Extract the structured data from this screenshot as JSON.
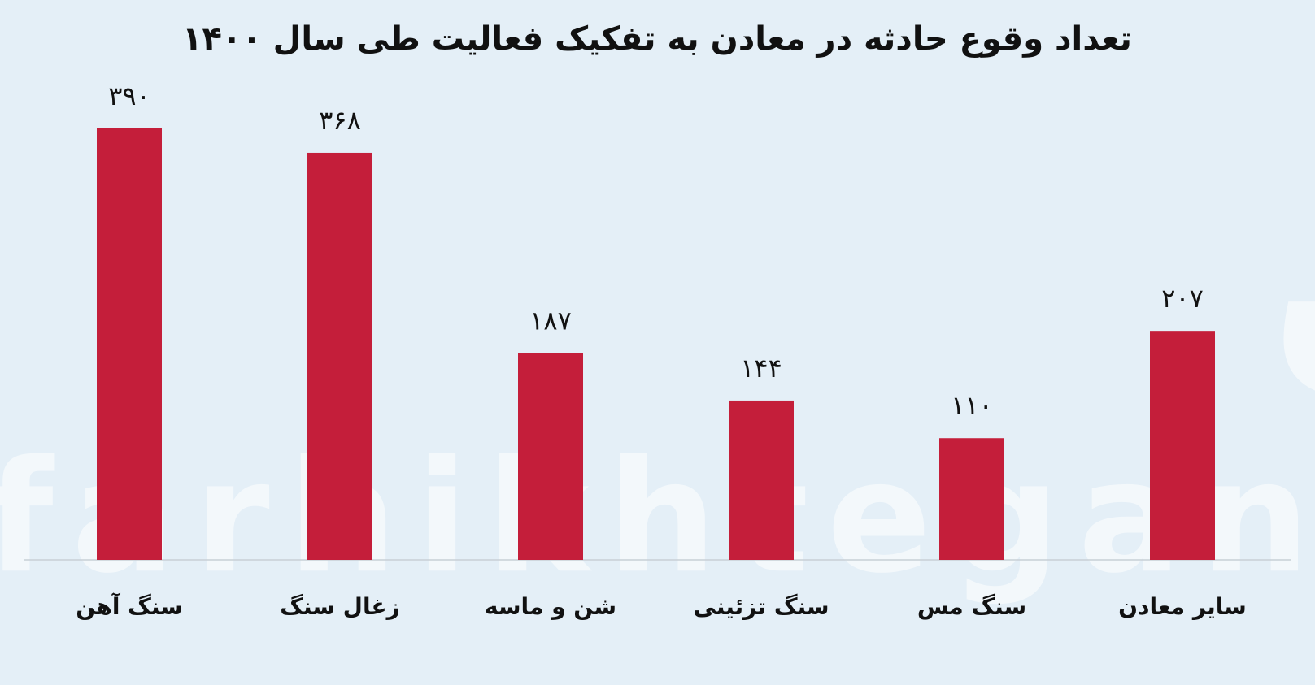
{
  "chart_data": {
    "type": "bar",
    "title": "تعداد وقوع حادثه در معادن به تفکیک فعالیت طی سال ۱۴۰۰",
    "categories": [
      "سنگ آهن",
      "زغال سنگ",
      "شن و ماسه",
      "سنگ تزئینی",
      "سنگ مس",
      "سایر معادن"
    ],
    "values": [
      390,
      368,
      187,
      144,
      110,
      207
    ],
    "value_labels": [
      "۳۹۰",
      "۳۶۸",
      "۱۸۷",
      "۱۴۴",
      "۱۱۰",
      "۲۰۷"
    ],
    "color": "#c41e3a",
    "watermark": [
      "فرهیختگان",
      "farhikhtegan"
    ]
  }
}
